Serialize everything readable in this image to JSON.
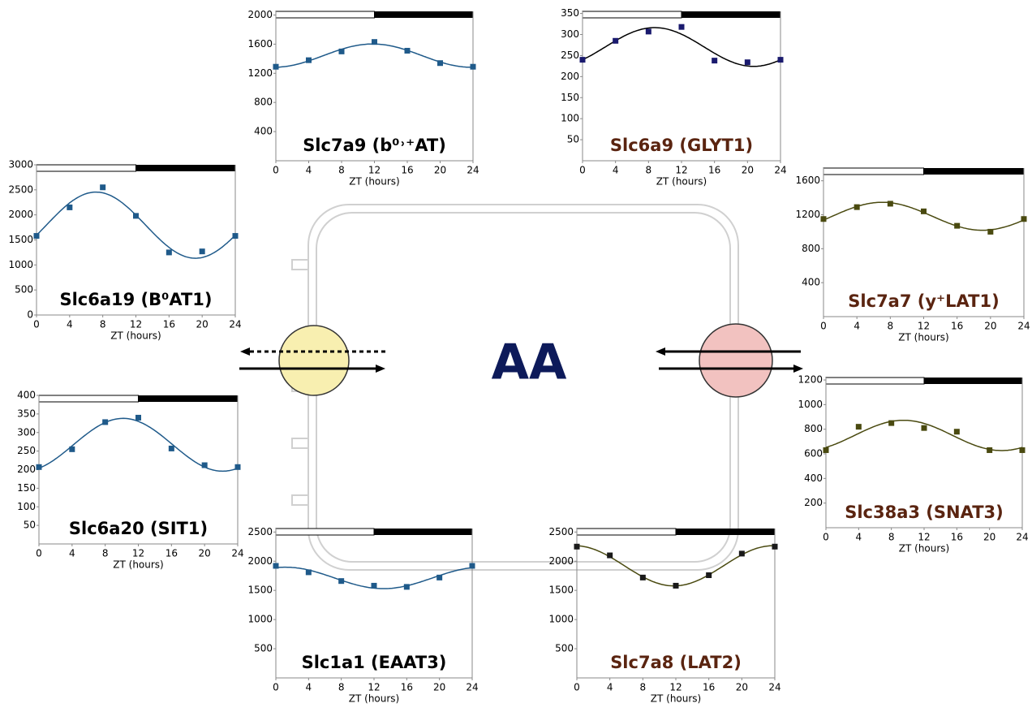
{
  "center_label": "AA",
  "chart_data": [
    {
      "type": "scatter",
      "title": "Slc7a9 (b⁰˒⁺AT)",
      "title_color": "#000000",
      "x_label": "ZT (hours)",
      "x": [
        0,
        4,
        8,
        12,
        16,
        20,
        24
      ],
      "series": [
        {
          "color": "#1f5a8a",
          "fit_color": "#1f5a8a",
          "values": [
            1290,
            1380,
            1500,
            1630,
            1510,
            1340,
            1290
          ]
        }
      ],
      "xlim": [
        0,
        24
      ],
      "xticks": [
        0,
        4,
        8,
        12,
        16,
        20,
        24
      ],
      "ylim": [
        0,
        2050
      ],
      "yticks": [
        400,
        800,
        1200,
        1600,
        2000
      ]
    },
    {
      "type": "scatter",
      "title": "Slc6a9 (GLYT1)",
      "title_color": "#5a2410",
      "x_label": "ZT (hours)",
      "x": [
        0,
        4,
        8,
        12,
        16,
        20,
        24
      ],
      "series": [
        {
          "color": "#1a1a6e",
          "fit_color": "#000000",
          "values": [
            240,
            285,
            307,
            318,
            238,
            234,
            240
          ]
        }
      ],
      "xlim": [
        0,
        24
      ],
      "xticks": [
        0,
        4,
        8,
        12,
        16,
        20,
        24
      ],
      "ylim": [
        0,
        355
      ],
      "yticks": [
        50,
        100,
        150,
        200,
        250,
        300,
        350
      ]
    },
    {
      "type": "scatter",
      "title": "Slc6a19 (B⁰AT1)",
      "title_color": "#000000",
      "x_label": "ZT (hours)",
      "x": [
        0,
        4,
        8,
        12,
        16,
        20,
        24
      ],
      "series": [
        {
          "color": "#1f5a8a",
          "fit_color": "#1f5a8a",
          "values": [
            1580,
            2150,
            2550,
            1980,
            1250,
            1270,
            1580
          ]
        }
      ],
      "xlim": [
        0,
        24
      ],
      "xticks": [
        0,
        4,
        8,
        12,
        16,
        20,
        24
      ],
      "ylim": [
        0,
        3000
      ],
      "yticks": [
        0,
        500,
        1000,
        1500,
        2000,
        2500,
        3000
      ]
    },
    {
      "type": "scatter",
      "title": "Slc7a7 (y⁺LAT1)",
      "title_color": "#5a2410",
      "x_label": "ZT (hours)",
      "x": [
        0,
        4,
        8,
        12,
        16,
        20,
        24
      ],
      "series": [
        {
          "color": "#4a4a10",
          "fit_color": "#4a4a10",
          "values": [
            1150,
            1290,
            1330,
            1240,
            1070,
            1000,
            1150
          ]
        }
      ],
      "xlim": [
        0,
        24
      ],
      "xticks": [
        0,
        4,
        8,
        12,
        16,
        20,
        24
      ],
      "ylim": [
        0,
        1750
      ],
      "yticks": [
        400,
        800,
        1200,
        1600
      ]
    },
    {
      "type": "scatter",
      "title": "Slc6a20 (SIT1)",
      "title_color": "#000000",
      "x_label": "ZT (hours)",
      "x": [
        0,
        4,
        8,
        12,
        16,
        20,
        24
      ],
      "series": [
        {
          "color": "#1f5a8a",
          "fit_color": "#1f5a8a",
          "values": [
            207,
            255,
            328,
            340,
            257,
            212,
            207
          ]
        }
      ],
      "xlim": [
        0,
        24
      ],
      "xticks": [
        0,
        4,
        8,
        12,
        16,
        20,
        24
      ],
      "ylim": [
        0,
        400
      ],
      "yticks": [
        50,
        100,
        150,
        200,
        250,
        300,
        350,
        400
      ]
    },
    {
      "type": "scatter",
      "title": "Slc38a3 (SNAT3)",
      "title_color": "#5a2410",
      "x_label": "ZT (hours)",
      "x": [
        0,
        4,
        8,
        12,
        16,
        20,
        24
      ],
      "series": [
        {
          "color": "#4a4a10",
          "fit_color": "#4a4a10",
          "values": [
            630,
            820,
            850,
            810,
            780,
            630,
            630
          ]
        }
      ],
      "xlim": [
        0,
        24
      ],
      "xticks": [
        0,
        4,
        8,
        12,
        16,
        20,
        24
      ],
      "ylim": [
        0,
        1220
      ],
      "yticks": [
        200,
        400,
        600,
        800,
        1000,
        1200
      ]
    },
    {
      "type": "scatter",
      "title": "Slc1a1 (EAAT3)",
      "title_color": "#000000",
      "x_label": "ZT (hours)",
      "x": [
        0,
        4,
        8,
        12,
        16,
        20,
        24
      ],
      "series": [
        {
          "color": "#1f5a8a",
          "fit_color": "#1f5a8a",
          "values": [
            1920,
            1810,
            1660,
            1580,
            1560,
            1720,
            1920
          ]
        }
      ],
      "xlim": [
        0,
        24
      ],
      "xticks": [
        0,
        4,
        8,
        12,
        16,
        20,
        24
      ],
      "ylim": [
        0,
        2560
      ],
      "yticks": [
        500,
        1000,
        1500,
        2000,
        2500
      ]
    },
    {
      "type": "scatter",
      "title": "Slc7a8 (LAT2)",
      "title_color": "#5a2410",
      "x_label": "ZT (hours)",
      "x": [
        0,
        4,
        8,
        12,
        16,
        20,
        24
      ],
      "series": [
        {
          "color": "#1a1a1a",
          "fit_color": "#4a4a10",
          "values": [
            2250,
            2100,
            1720,
            1580,
            1760,
            2130,
            2250
          ]
        }
      ],
      "xlim": [
        0,
        24
      ],
      "xticks": [
        0,
        4,
        8,
        12,
        16,
        20,
        24
      ],
      "ylim": [
        0,
        2560
      ],
      "yticks": [
        500,
        1000,
        1500,
        2000,
        2500
      ]
    }
  ]
}
